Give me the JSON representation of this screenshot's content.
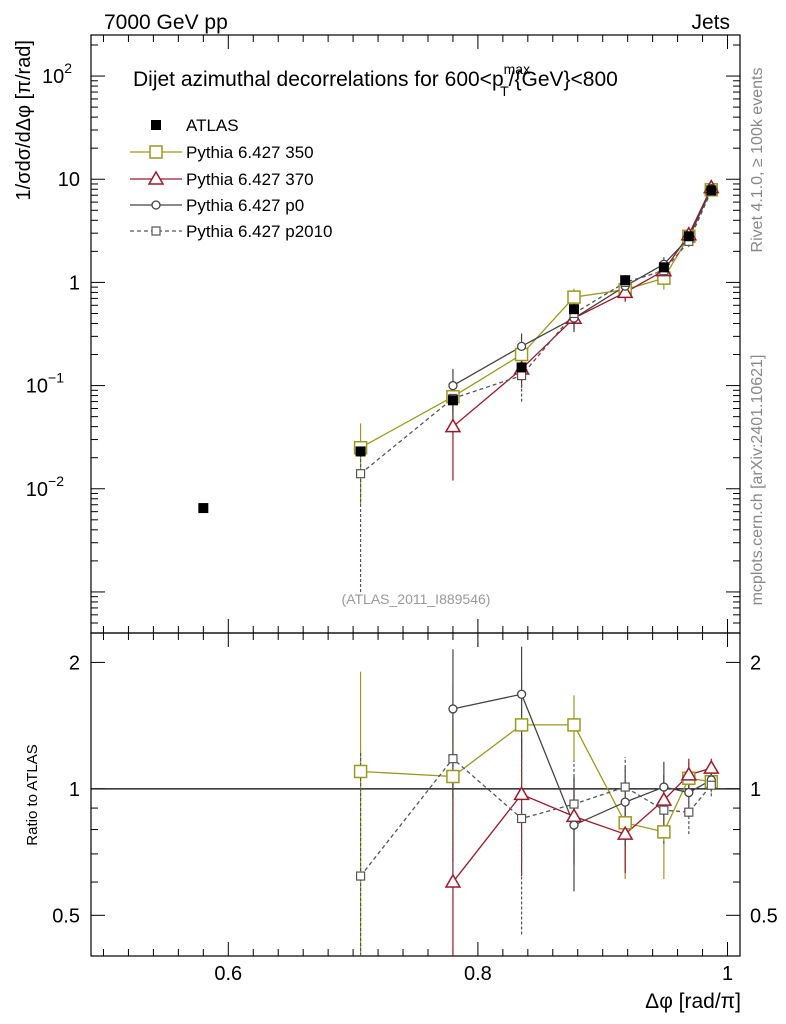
{
  "header": {
    "left": "7000 GeV pp",
    "right": "Jets"
  },
  "side_labels": {
    "rivet": "Rivet 4.1.0, ≥ 100k events",
    "mcplots": "mcplots.cern.ch [arXiv:2401.10621]"
  },
  "chart_data": {
    "type": "line",
    "title_parts": {
      "prefix": "Dijet azimuthal decorrelations for 600<p",
      "sub": "T",
      "sup": "max",
      "suffix": "/{GeV}<800"
    },
    "analysis_id": "(ATLAS_2011_I889546)",
    "xlabel": "Δφ [rad/π]",
    "ylabel": "1/σdσ/dΔφ [π/rad]",
    "ratio_ylabel": "Ratio to ATLAS",
    "xlim": [
      0.49,
      1.01
    ],
    "ylim": [
      0.0004,
      250
    ],
    "ratio_ylim": [
      0.4,
      2.35
    ],
    "x_ticks": [
      {
        "v": 0.6,
        "label": "0.6"
      },
      {
        "v": 0.8,
        "label": "0.8"
      },
      {
        "v": 1.0,
        "label": "1"
      }
    ],
    "y_ticks": [
      {
        "v": 0.01,
        "base": "10",
        "exp": "−2"
      },
      {
        "v": 0.1,
        "base": "10",
        "exp": "−1"
      },
      {
        "v": 1,
        "base": "1",
        "exp": ""
      },
      {
        "v": 10,
        "base": "10",
        "exp": ""
      },
      {
        "v": 100,
        "base": "10",
        "exp": "2"
      }
    ],
    "ratio_ticks": [
      {
        "v": 0.5,
        "label": "0.5"
      },
      {
        "v": 1,
        "label": "1"
      },
      {
        "v": 2,
        "label": "2"
      }
    ],
    "data": {
      "name": "ATLAS",
      "x": [
        0.58,
        0.706,
        0.78,
        0.835,
        0.877,
        0.918,
        0.949,
        0.969,
        0.987
      ],
      "y": [
        0.0065,
        0.023,
        0.072,
        0.15,
        0.55,
        1.05,
        1.4,
        2.8,
        7.8
      ]
    },
    "series": [
      {
        "name": "Pythia 6.427 350",
        "color": "#9a9a1e",
        "marker": "square-open",
        "dashed": false,
        "x": [
          0.706,
          0.78,
          0.835,
          0.877,
          0.918,
          0.949,
          0.969,
          0.987
        ],
        "y": [
          0.025,
          0.078,
          0.2,
          0.72,
          0.85,
          1.1,
          2.8,
          7.9
        ],
        "yerr": [
          0.018,
          0.03,
          0.06,
          0.15,
          0.18,
          0.25,
          0.3,
          0.5
        ],
        "ratio": [
          1.1,
          1.07,
          1.42,
          1.42,
          0.83,
          0.79,
          1.06,
          1.04
        ],
        "ratio_err": [
          0.8,
          0.4,
          0.4,
          0.25,
          0.22,
          0.18,
          0.1,
          0.06
        ]
      },
      {
        "name": "Pythia 6.427 370",
        "color": "#a0172a",
        "marker": "triangle-open",
        "dashed": false,
        "x": [
          0.78,
          0.835,
          0.877,
          0.918,
          0.949,
          0.969,
          0.987
        ],
        "y": [
          0.04,
          0.145,
          0.45,
          0.8,
          1.3,
          2.9,
          8.3
        ],
        "yerr": [
          0.028,
          0.05,
          0.1,
          0.15,
          0.22,
          0.3,
          0.5
        ],
        "ratio": [
          0.6,
          0.97,
          0.86,
          0.78,
          0.94,
          1.08,
          1.12
        ],
        "ratio_err": [
          0.45,
          0.35,
          0.2,
          0.15,
          0.14,
          0.1,
          0.06
        ]
      },
      {
        "name": "Pythia 6.427 p0",
        "color": "#444444",
        "marker": "circle-open",
        "dashed": false,
        "x": [
          0.78,
          0.835,
          0.877,
          0.918,
          0.949,
          0.969,
          0.987
        ],
        "y": [
          0.1,
          0.24,
          0.45,
          0.92,
          1.5,
          2.7,
          8.1
        ],
        "yerr": [
          0.045,
          0.08,
          0.12,
          0.2,
          0.25,
          0.3,
          0.5
        ],
        "ratio": [
          1.55,
          1.68,
          0.82,
          0.93,
          1.01,
          0.98,
          1.05
        ],
        "ratio_err": [
          0.6,
          0.5,
          0.25,
          0.2,
          0.15,
          0.1,
          0.06
        ]
      },
      {
        "name": "Pythia 6.427 p2010",
        "color": "#555555",
        "marker": "square-open-small",
        "dashed": true,
        "x": [
          0.706,
          0.78,
          0.835,
          0.877,
          0.918,
          0.949,
          0.969,
          0.987
        ],
        "y": [
          0.014,
          0.075,
          0.125,
          0.5,
          1.0,
          1.3,
          2.5,
          7.7
        ],
        "yerr": [
          0.013,
          0.035,
          0.055,
          0.12,
          0.18,
          0.22,
          0.3,
          0.5
        ],
        "ratio": [
          0.62,
          1.18,
          0.85,
          0.92,
          1.01,
          0.89,
          0.88,
          1.02
        ],
        "ratio_err": [
          0.6,
          0.6,
          0.4,
          0.25,
          0.18,
          0.15,
          0.1,
          0.06
        ]
      }
    ]
  }
}
